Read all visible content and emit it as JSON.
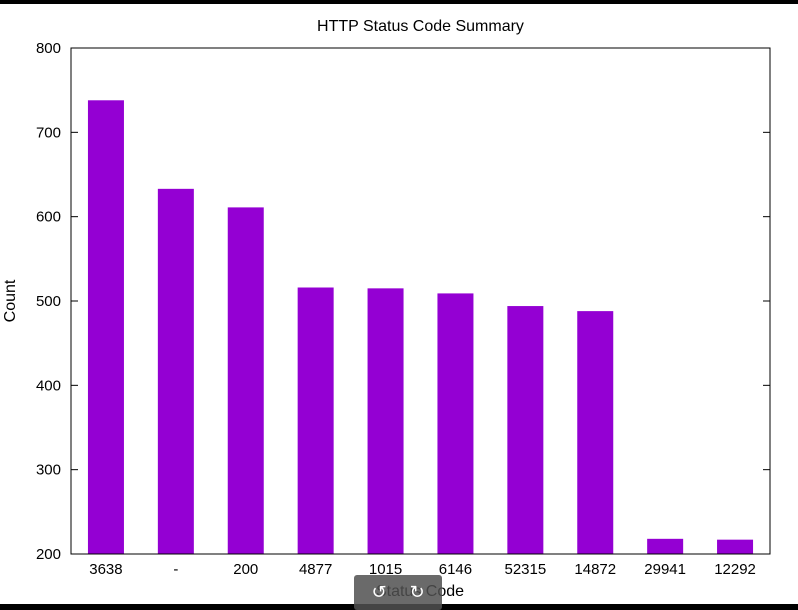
{
  "chart_data": {
    "type": "bar",
    "title": "HTTP Status Code Summary",
    "xlabel": "Status Code",
    "ylabel": "Count",
    "categories": [
      "3638",
      "-",
      "200",
      "4877",
      "1015",
      "6146",
      "52315",
      "14872",
      "29941",
      "12292"
    ],
    "values": [
      738,
      633,
      611,
      516,
      515,
      509,
      494,
      488,
      218,
      217
    ],
    "ylim": [
      200,
      800
    ],
    "yticks": [
      200,
      300,
      400,
      500,
      600,
      700,
      800
    ],
    "color": "#9400d3",
    "grid": false,
    "legend": false
  },
  "toolbar": {
    "rotate_left_icon": "rotate-ccw-icon",
    "rotate_left_glyph": "↺",
    "rotate_right_icon": "rotate-cw-icon",
    "rotate_right_glyph": "↻"
  }
}
